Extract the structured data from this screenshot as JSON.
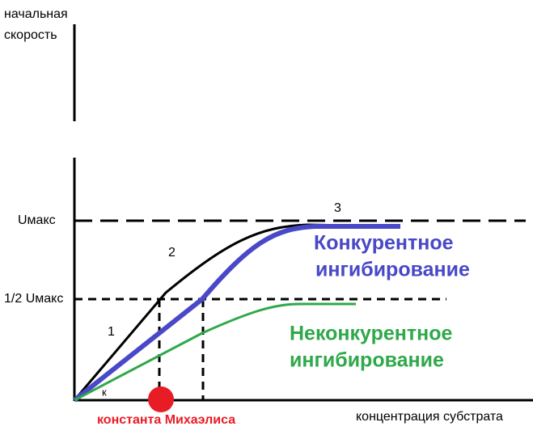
{
  "y_axis_label": [
    "начальная",
    "скорость"
  ],
  "x_axis_label": "концентрация субстрата",
  "levels": {
    "max": "Uмакс",
    "half": "1/2 Uмакс"
  },
  "segments": [
    "1",
    "2",
    "3"
  ],
  "k_label": "к",
  "competitive": [
    "Конкурентное",
    "ингибирование"
  ],
  "noncompetitive": [
    "Неконкурентное",
    "ингибирование"
  ],
  "michaelis": "константа Михаэлиса"
}
